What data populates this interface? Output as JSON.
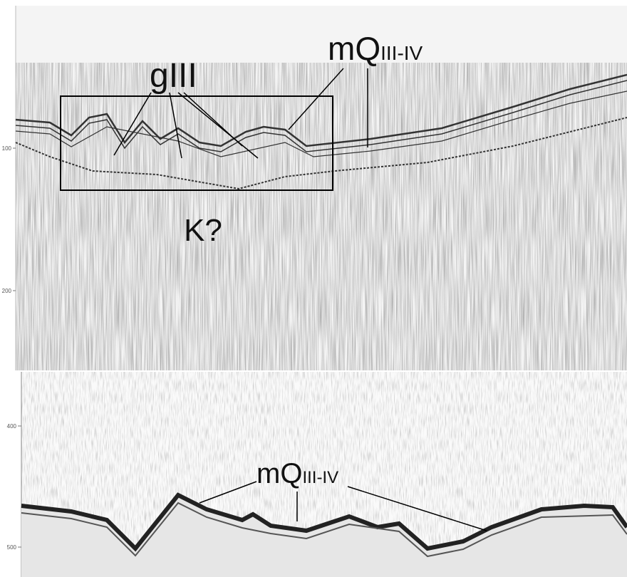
{
  "top_panel": {
    "y_ticks": [
      "100",
      "200"
    ],
    "labels": {
      "g": "gIII",
      "mq": "mQ",
      "mq_sub": "III-IV",
      "k": "K?"
    }
  },
  "bottom_panel": {
    "y_ticks": [
      "400",
      "500"
    ],
    "labels": {
      "mq": "mQ",
      "mq_sub": "III-IV"
    }
  }
}
